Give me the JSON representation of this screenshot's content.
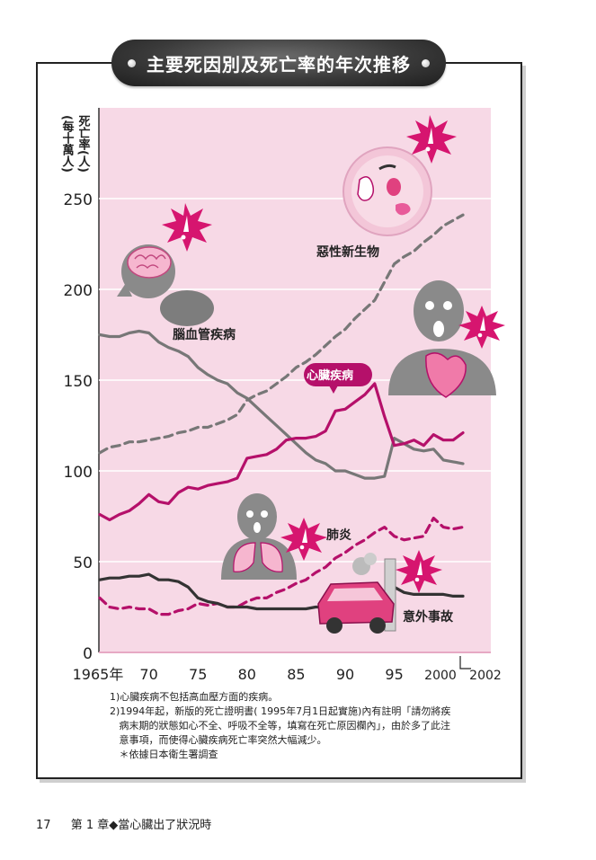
{
  "title": "主要死因別及死亡率的年次推移",
  "chart_data": {
    "type": "line",
    "ylabel_lines": [
      "死亡率(人)",
      "(每十萬人)"
    ],
    "ylim": [
      0,
      250
    ],
    "yticks": [
      "0",
      "50",
      "100",
      "150",
      "200",
      "250"
    ],
    "xticks": [
      "1965年",
      "70",
      "75",
      "80",
      "85",
      "90",
      "95",
      "2000",
      "2002"
    ],
    "x": [
      1965,
      1970,
      1975,
      1980,
      1985,
      1990,
      1995,
      2000,
      2002
    ],
    "grid": true,
    "series": [
      {
        "name": "惡性新生物",
        "style": "dashed",
        "color": "#777777",
        "points": [
          [
            1965,
            110
          ],
          [
            1966,
            113
          ],
          [
            1967,
            114
          ],
          [
            1968,
            116
          ],
          [
            1969,
            116
          ],
          [
            1970,
            117
          ],
          [
            1971,
            118
          ],
          [
            1972,
            119
          ],
          [
            1973,
            121
          ],
          [
            1974,
            122
          ],
          [
            1975,
            124
          ],
          [
            1976,
            124
          ],
          [
            1977,
            126
          ],
          [
            1978,
            128
          ],
          [
            1979,
            131
          ],
          [
            1980,
            139
          ],
          [
            1981,
            142
          ],
          [
            1982,
            144
          ],
          [
            1983,
            148
          ],
          [
            1984,
            152
          ],
          [
            1985,
            157
          ],
          [
            1986,
            160
          ],
          [
            1987,
            164
          ],
          [
            1988,
            169
          ],
          [
            1989,
            174
          ],
          [
            1990,
            178
          ],
          [
            1991,
            184
          ],
          [
            1992,
            189
          ],
          [
            1993,
            194
          ],
          [
            1994,
            204
          ],
          [
            1995,
            214
          ],
          [
            1996,
            218
          ],
          [
            1997,
            221
          ],
          [
            1998,
            226
          ],
          [
            1999,
            230
          ],
          [
            2000,
            235
          ],
          [
            2001,
            238
          ],
          [
            2002,
            241
          ]
        ]
      },
      {
        "name": "腦血管疾病",
        "style": "solid",
        "color": "#777777",
        "points": [
          [
            1965,
            175
          ],
          [
            1966,
            174
          ],
          [
            1967,
            174
          ],
          [
            1968,
            176
          ],
          [
            1969,
            177
          ],
          [
            1970,
            176
          ],
          [
            1971,
            171
          ],
          [
            1972,
            168
          ],
          [
            1973,
            166
          ],
          [
            1974,
            163
          ],
          [
            1975,
            157
          ],
          [
            1976,
            153
          ],
          [
            1977,
            150
          ],
          [
            1978,
            148
          ],
          [
            1979,
            143
          ],
          [
            1980,
            140
          ],
          [
            1981,
            135
          ],
          [
            1982,
            130
          ],
          [
            1983,
            125
          ],
          [
            1984,
            120
          ],
          [
            1985,
            115
          ],
          [
            1986,
            110
          ],
          [
            1987,
            106
          ],
          [
            1988,
            104
          ],
          [
            1989,
            100
          ],
          [
            1990,
            100
          ],
          [
            1991,
            98
          ],
          [
            1992,
            96
          ],
          [
            1993,
            96
          ],
          [
            1994,
            97
          ],
          [
            1995,
            118
          ],
          [
            1996,
            115
          ],
          [
            1997,
            112
          ],
          [
            1998,
            111
          ],
          [
            1999,
            112
          ],
          [
            2000,
            106
          ],
          [
            2001,
            105
          ],
          [
            2002,
            104
          ]
        ]
      },
      {
        "name": "心臟疾病",
        "style": "solid",
        "color": "#b5106a",
        "points": [
          [
            1965,
            76
          ],
          [
            1966,
            73
          ],
          [
            1967,
            76
          ],
          [
            1968,
            78
          ],
          [
            1969,
            82
          ],
          [
            1970,
            87
          ],
          [
            1971,
            83
          ],
          [
            1972,
            82
          ],
          [
            1973,
            88
          ],
          [
            1974,
            91
          ],
          [
            1975,
            90
          ],
          [
            1976,
            92
          ],
          [
            1977,
            93
          ],
          [
            1978,
            94
          ],
          [
            1979,
            96
          ],
          [
            1980,
            107
          ],
          [
            1981,
            108
          ],
          [
            1982,
            109
          ],
          [
            1983,
            112
          ],
          [
            1984,
            117
          ],
          [
            1985,
            118
          ],
          [
            1986,
            118
          ],
          [
            1987,
            119
          ],
          [
            1988,
            122
          ],
          [
            1989,
            133
          ],
          [
            1990,
            134
          ],
          [
            1991,
            138
          ],
          [
            1992,
            142
          ],
          [
            1993,
            148
          ],
          [
            1994,
            130
          ],
          [
            1995,
            114
          ],
          [
            1996,
            115
          ],
          [
            1997,
            117
          ],
          [
            1998,
            114
          ],
          [
            1999,
            120
          ],
          [
            2000,
            117
          ],
          [
            2001,
            117
          ],
          [
            2002,
            121
          ]
        ]
      },
      {
        "name": "肺炎",
        "style": "dashed",
        "color": "#b5106a",
        "points": [
          [
            1965,
            30
          ],
          [
            1966,
            25
          ],
          [
            1967,
            24
          ],
          [
            1968,
            25
          ],
          [
            1969,
            24
          ],
          [
            1970,
            24
          ],
          [
            1971,
            21
          ],
          [
            1972,
            21
          ],
          [
            1973,
            23
          ],
          [
            1974,
            24
          ],
          [
            1975,
            27
          ],
          [
            1976,
            26
          ],
          [
            1977,
            27
          ],
          [
            1978,
            25
          ],
          [
            1979,
            25
          ],
          [
            1980,
            28
          ],
          [
            1981,
            30
          ],
          [
            1982,
            30
          ],
          [
            1983,
            33
          ],
          [
            1984,
            35
          ],
          [
            1985,
            38
          ],
          [
            1986,
            40
          ],
          [
            1987,
            44
          ],
          [
            1988,
            47
          ],
          [
            1989,
            52
          ],
          [
            1990,
            55
          ],
          [
            1991,
            59
          ],
          [
            1992,
            62
          ],
          [
            1993,
            66
          ],
          [
            1994,
            69
          ],
          [
            1995,
            64
          ],
          [
            1996,
            62
          ],
          [
            1997,
            63
          ],
          [
            1998,
            64
          ],
          [
            1999,
            74
          ],
          [
            2000,
            69
          ],
          [
            2001,
            68
          ],
          [
            2002,
            69
          ]
        ]
      },
      {
        "name": "意外事故",
        "style": "solid",
        "color": "#333333",
        "points": [
          [
            1965,
            40
          ],
          [
            1966,
            41
          ],
          [
            1967,
            41
          ],
          [
            1968,
            42
          ],
          [
            1969,
            42
          ],
          [
            1970,
            43
          ],
          [
            1971,
            40
          ],
          [
            1972,
            40
          ],
          [
            1973,
            39
          ],
          [
            1974,
            36
          ],
          [
            1975,
            30
          ],
          [
            1976,
            28
          ],
          [
            1977,
            27
          ],
          [
            1978,
            25
          ],
          [
            1979,
            25
          ],
          [
            1980,
            25
          ],
          [
            1981,
            24
          ],
          [
            1982,
            24
          ],
          [
            1983,
            24
          ],
          [
            1984,
            24
          ],
          [
            1985,
            24
          ],
          [
            1986,
            24
          ],
          [
            1987,
            25
          ],
          [
            1988,
            25
          ],
          [
            1989,
            26
          ],
          [
            1990,
            26
          ],
          [
            1991,
            27
          ],
          [
            1992,
            28
          ],
          [
            1993,
            29
          ],
          [
            1994,
            30
          ],
          [
            1995,
            36
          ],
          [
            1996,
            33
          ],
          [
            1997,
            32
          ],
          [
            1998,
            32
          ],
          [
            1999,
            32
          ],
          [
            2000,
            32
          ],
          [
            2001,
            31
          ],
          [
            2002,
            31
          ]
        ]
      }
    ]
  },
  "notes": [
    "1)心臟疾病不包括高血壓方面的疾病。",
    "2)1994年起，新版的死亡證明書( 1995年7月1日起實施)內有註明「請勿將疾",
    "   病末期的狀態如心不全、呼吸不全等，填寫在死亡原因欄內」，由於多了此注",
    "   意事項，而使得心臟疾病死亡率突然大幅減少。",
    "   ＊依據日本衛生署調查"
  ],
  "footer": {
    "page": "17",
    "chapter": "第 1 章◆當心臟出了狀況時"
  },
  "colors": {
    "plot_bg": "#f7d9e6",
    "accent": "#b5106a",
    "gray": "#777777"
  }
}
